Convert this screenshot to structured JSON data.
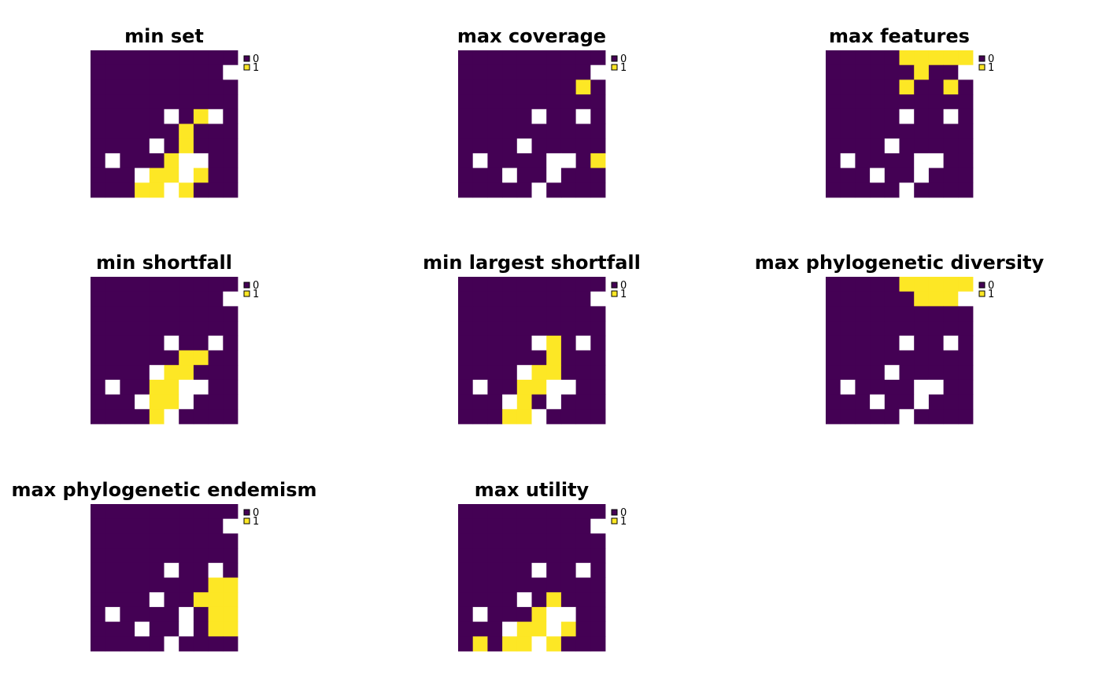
{
  "figure": {
    "background": "#ffffff"
  },
  "colors": {
    "0": "#440154",
    "1": "#fde725",
    "na": "#ffffff",
    "legend_border": "#000000"
  },
  "chart_data": [
    {
      "type": "heatmap",
      "title": "min set",
      "legend": {
        "categories": [
          "0",
          "1"
        ],
        "placement": "right-top"
      },
      "grid": [
        [
          0,
          0,
          0,
          0,
          0,
          0,
          0,
          0,
          0,
          0
        ],
        [
          0,
          0,
          0,
          0,
          0,
          0,
          0,
          0,
          0,
          null
        ],
        [
          0,
          0,
          0,
          0,
          0,
          0,
          0,
          0,
          0,
          0
        ],
        [
          0,
          0,
          0,
          0,
          0,
          0,
          0,
          0,
          0,
          0
        ],
        [
          0,
          0,
          0,
          0,
          0,
          null,
          0,
          1,
          null,
          0
        ],
        [
          0,
          0,
          0,
          0,
          0,
          0,
          1,
          0,
          0,
          0
        ],
        [
          0,
          0,
          0,
          0,
          null,
          0,
          1,
          0,
          0,
          0
        ],
        [
          0,
          null,
          0,
          0,
          0,
          1,
          null,
          null,
          0,
          0
        ],
        [
          0,
          0,
          0,
          null,
          1,
          1,
          null,
          1,
          0,
          0
        ],
        [
          0,
          0,
          0,
          1,
          1,
          null,
          1,
          0,
          0,
          0
        ]
      ]
    },
    {
      "type": "heatmap",
      "title": "max coverage",
      "legend": {
        "categories": [
          "0",
          "1"
        ],
        "placement": "right-top"
      },
      "grid": [
        [
          0,
          0,
          0,
          0,
          0,
          0,
          0,
          0,
          0,
          0
        ],
        [
          0,
          0,
          0,
          0,
          0,
          0,
          0,
          0,
          0,
          null
        ],
        [
          0,
          0,
          0,
          0,
          0,
          0,
          0,
          0,
          1,
          0
        ],
        [
          0,
          0,
          0,
          0,
          0,
          0,
          0,
          0,
          0,
          0
        ],
        [
          0,
          0,
          0,
          0,
          0,
          null,
          0,
          0,
          null,
          0
        ],
        [
          0,
          0,
          0,
          0,
          0,
          0,
          0,
          0,
          0,
          0
        ],
        [
          0,
          0,
          0,
          0,
          null,
          0,
          0,
          0,
          0,
          0
        ],
        [
          0,
          null,
          0,
          0,
          0,
          0,
          null,
          null,
          0,
          1
        ],
        [
          0,
          0,
          0,
          null,
          0,
          0,
          null,
          0,
          0,
          0
        ],
        [
          0,
          0,
          0,
          0,
          0,
          null,
          0,
          0,
          0,
          0
        ]
      ]
    },
    {
      "type": "heatmap",
      "title": "max features",
      "legend": {
        "categories": [
          "0",
          "1"
        ],
        "placement": "right-top"
      },
      "grid": [
        [
          0,
          0,
          0,
          0,
          0,
          1,
          1,
          1,
          1,
          1
        ],
        [
          0,
          0,
          0,
          0,
          0,
          0,
          1,
          0,
          0,
          null
        ],
        [
          0,
          0,
          0,
          0,
          0,
          1,
          0,
          0,
          1,
          0
        ],
        [
          0,
          0,
          0,
          0,
          0,
          0,
          0,
          0,
          0,
          0
        ],
        [
          0,
          0,
          0,
          0,
          0,
          null,
          0,
          0,
          null,
          0
        ],
        [
          0,
          0,
          0,
          0,
          0,
          0,
          0,
          0,
          0,
          0
        ],
        [
          0,
          0,
          0,
          0,
          null,
          0,
          0,
          0,
          0,
          0
        ],
        [
          0,
          null,
          0,
          0,
          0,
          0,
          null,
          null,
          0,
          0
        ],
        [
          0,
          0,
          0,
          null,
          0,
          0,
          null,
          0,
          0,
          0
        ],
        [
          0,
          0,
          0,
          0,
          0,
          null,
          0,
          0,
          0,
          0
        ]
      ]
    },
    {
      "type": "heatmap",
      "title": "min shortfall",
      "legend": {
        "categories": [
          "0",
          "1"
        ],
        "placement": "right-top"
      },
      "grid": [
        [
          0,
          0,
          0,
          0,
          0,
          0,
          0,
          0,
          0,
          0
        ],
        [
          0,
          0,
          0,
          0,
          0,
          0,
          0,
          0,
          0,
          null
        ],
        [
          0,
          0,
          0,
          0,
          0,
          0,
          0,
          0,
          0,
          0
        ],
        [
          0,
          0,
          0,
          0,
          0,
          0,
          0,
          0,
          0,
          0
        ],
        [
          0,
          0,
          0,
          0,
          0,
          null,
          0,
          0,
          null,
          0
        ],
        [
          0,
          0,
          0,
          0,
          0,
          0,
          1,
          1,
          0,
          0
        ],
        [
          0,
          0,
          0,
          0,
          null,
          1,
          1,
          0,
          0,
          0
        ],
        [
          0,
          null,
          0,
          0,
          1,
          1,
          null,
          null,
          0,
          0
        ],
        [
          0,
          0,
          0,
          null,
          1,
          1,
          null,
          0,
          0,
          0
        ],
        [
          0,
          0,
          0,
          0,
          1,
          null,
          0,
          0,
          0,
          0
        ]
      ]
    },
    {
      "type": "heatmap",
      "title": "min largest shortfall",
      "legend": {
        "categories": [
          "0",
          "1"
        ],
        "placement": "right-top"
      },
      "grid": [
        [
          0,
          0,
          0,
          0,
          0,
          0,
          0,
          0,
          0,
          0
        ],
        [
          0,
          0,
          0,
          0,
          0,
          0,
          0,
          0,
          0,
          null
        ],
        [
          0,
          0,
          0,
          0,
          0,
          0,
          0,
          0,
          0,
          0
        ],
        [
          0,
          0,
          0,
          0,
          0,
          0,
          0,
          0,
          0,
          0
        ],
        [
          0,
          0,
          0,
          0,
          0,
          null,
          1,
          0,
          null,
          0
        ],
        [
          0,
          0,
          0,
          0,
          0,
          0,
          1,
          0,
          0,
          0
        ],
        [
          0,
          0,
          0,
          0,
          null,
          1,
          1,
          0,
          0,
          0
        ],
        [
          0,
          null,
          0,
          0,
          1,
          1,
          null,
          null,
          0,
          0
        ],
        [
          0,
          0,
          0,
          null,
          1,
          0,
          null,
          0,
          0,
          0
        ],
        [
          0,
          0,
          0,
          1,
          1,
          null,
          0,
          0,
          0,
          0
        ]
      ]
    },
    {
      "type": "heatmap",
      "title": "max phylogenetic diversity",
      "legend": {
        "categories": [
          "0",
          "1"
        ],
        "placement": "right-top"
      },
      "grid": [
        [
          0,
          0,
          0,
          0,
          0,
          1,
          1,
          1,
          1,
          1
        ],
        [
          0,
          0,
          0,
          0,
          0,
          0,
          1,
          1,
          1,
          null
        ],
        [
          0,
          0,
          0,
          0,
          0,
          0,
          0,
          0,
          0,
          0
        ],
        [
          0,
          0,
          0,
          0,
          0,
          0,
          0,
          0,
          0,
          0
        ],
        [
          0,
          0,
          0,
          0,
          0,
          null,
          0,
          0,
          null,
          0
        ],
        [
          0,
          0,
          0,
          0,
          0,
          0,
          0,
          0,
          0,
          0
        ],
        [
          0,
          0,
          0,
          0,
          null,
          0,
          0,
          0,
          0,
          0
        ],
        [
          0,
          null,
          0,
          0,
          0,
          0,
          null,
          null,
          0,
          0
        ],
        [
          0,
          0,
          0,
          null,
          0,
          0,
          null,
          0,
          0,
          0
        ],
        [
          0,
          0,
          0,
          0,
          0,
          null,
          0,
          0,
          0,
          0
        ]
      ]
    },
    {
      "type": "heatmap",
      "title": "max phylogenetic endemism",
      "legend": {
        "categories": [
          "0",
          "1"
        ],
        "placement": "right-top"
      },
      "grid": [
        [
          0,
          0,
          0,
          0,
          0,
          0,
          0,
          0,
          0,
          0
        ],
        [
          0,
          0,
          0,
          0,
          0,
          0,
          0,
          0,
          0,
          null
        ],
        [
          0,
          0,
          0,
          0,
          0,
          0,
          0,
          0,
          0,
          0
        ],
        [
          0,
          0,
          0,
          0,
          0,
          0,
          0,
          0,
          0,
          0
        ],
        [
          0,
          0,
          0,
          0,
          0,
          null,
          0,
          0,
          null,
          0
        ],
        [
          0,
          0,
          0,
          0,
          0,
          0,
          0,
          0,
          1,
          1
        ],
        [
          0,
          0,
          0,
          0,
          null,
          0,
          0,
          1,
          1,
          1
        ],
        [
          0,
          null,
          0,
          0,
          0,
          0,
          null,
          0,
          1,
          1
        ],
        [
          0,
          0,
          0,
          null,
          0,
          0,
          null,
          0,
          1,
          1
        ],
        [
          0,
          0,
          0,
          0,
          0,
          null,
          0,
          0,
          0,
          0
        ]
      ]
    },
    {
      "type": "heatmap",
      "title": "max utility",
      "legend": {
        "categories": [
          "0",
          "1"
        ],
        "placement": "right-top"
      },
      "grid": [
        [
          0,
          0,
          0,
          0,
          0,
          0,
          0,
          0,
          0,
          0
        ],
        [
          0,
          0,
          0,
          0,
          0,
          0,
          0,
          0,
          0,
          null
        ],
        [
          0,
          0,
          0,
          0,
          0,
          0,
          0,
          0,
          0,
          0
        ],
        [
          0,
          0,
          0,
          0,
          0,
          0,
          0,
          0,
          0,
          0
        ],
        [
          0,
          0,
          0,
          0,
          0,
          null,
          0,
          0,
          null,
          0
        ],
        [
          0,
          0,
          0,
          0,
          0,
          0,
          0,
          0,
          0,
          0
        ],
        [
          0,
          0,
          0,
          0,
          null,
          0,
          1,
          0,
          0,
          0
        ],
        [
          0,
          null,
          0,
          0,
          0,
          1,
          null,
          null,
          0,
          0
        ],
        [
          0,
          0,
          0,
          null,
          1,
          1,
          null,
          1,
          0,
          0
        ],
        [
          0,
          1,
          0,
          1,
          1,
          null,
          1,
          0,
          0,
          0
        ]
      ]
    }
  ]
}
